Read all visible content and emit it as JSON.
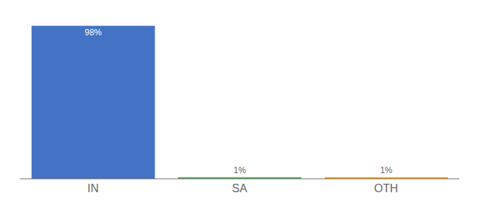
{
  "chart_data": {
    "type": "bar",
    "categories": [
      "IN",
      "SA",
      "OTH"
    ],
    "values": [
      98,
      1,
      1
    ],
    "value_labels": [
      "98%",
      "1%",
      "1%"
    ],
    "data_labels": true,
    "colors": [
      "#4472c4",
      "#4caf50",
      "#ffa500"
    ],
    "ylim": [
      0,
      100
    ],
    "tick_labels": "x",
    "grid": false
  }
}
